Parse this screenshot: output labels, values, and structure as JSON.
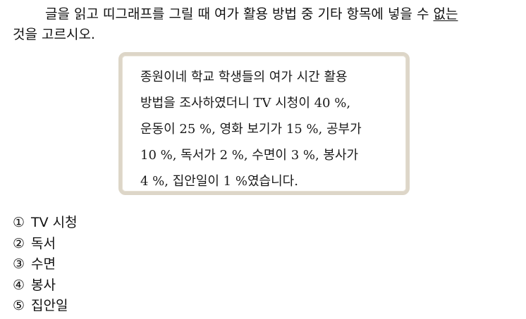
{
  "question": {
    "text_before": "글을 읽고 띠그래프를 그릴 때 여가 활용 방법 중 기타 항목에 넣을 수 ",
    "underlined": "없는",
    "text_after": "것을 고르시오."
  },
  "passage": {
    "lines": [
      "종원이네 학교 학생들의 여가 시간 활용",
      "방법을 조사하였더니 TV 시청이 40 %,",
      "운동이 25 %, 영화 보기가 15 %, 공부가",
      "10 %, 독서가 2 %, 수면이 3 %, 봉사가",
      "4 %, 집안일이 1 %였습니다."
    ]
  },
  "choices": [
    {
      "number": "①",
      "label": "TV 시청"
    },
    {
      "number": "②",
      "label": "독서"
    },
    {
      "number": "③",
      "label": "수면"
    },
    {
      "number": "④",
      "label": "봉사"
    },
    {
      "number": "⑤",
      "label": "집안일"
    }
  ]
}
